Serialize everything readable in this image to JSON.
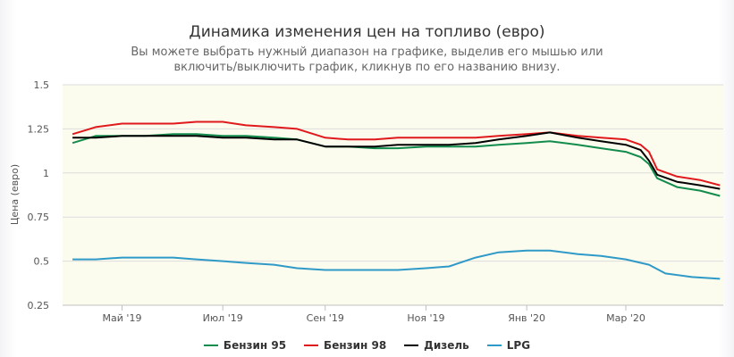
{
  "chart_data": {
    "type": "line",
    "title": "Динамика изменения цен на топливо (евро)",
    "subtitle_lines": [
      "Вы можете выбрать нужный диапазон на графике, выделив его мышью или",
      "включить/выключить график, кликнув по его названию внизу."
    ],
    "ylabel": "Цена (евро)",
    "xlabel": "",
    "ylim": [
      0.25,
      1.5
    ],
    "yticks": [
      0.25,
      0.5,
      0.75,
      1,
      1.25,
      1.5
    ],
    "xlim": [
      "2019-03-26",
      "2020-04-29"
    ],
    "xticks": [
      {
        "date": "2019-05-01",
        "label": "Май '19"
      },
      {
        "date": "2019-07-01",
        "label": "Июл '19"
      },
      {
        "date": "2019-09-01",
        "label": "Сен '19"
      },
      {
        "date": "2019-11-01",
        "label": "Ноя '19"
      },
      {
        "date": "2020-01-01",
        "label": "Янв '20"
      },
      {
        "date": "2020-03-01",
        "label": "Мар '20"
      }
    ],
    "grid": true,
    "legend_position": "bottom",
    "series": [
      {
        "name": "Бензин 95",
        "color": "#128c4c",
        "points": [
          [
            "2019-04-01",
            1.17
          ],
          [
            "2019-04-08",
            1.19
          ],
          [
            "2019-04-15",
            1.21
          ],
          [
            "2019-05-01",
            1.21
          ],
          [
            "2019-05-15",
            1.21
          ],
          [
            "2019-06-01",
            1.22
          ],
          [
            "2019-06-15",
            1.22
          ],
          [
            "2019-07-01",
            1.21
          ],
          [
            "2019-07-15",
            1.21
          ],
          [
            "2019-08-01",
            1.2
          ],
          [
            "2019-08-15",
            1.19
          ],
          [
            "2019-09-01",
            1.15
          ],
          [
            "2019-09-15",
            1.15
          ],
          [
            "2019-10-01",
            1.14
          ],
          [
            "2019-10-15",
            1.14
          ],
          [
            "2019-11-01",
            1.15
          ],
          [
            "2019-11-15",
            1.15
          ],
          [
            "2019-12-01",
            1.15
          ],
          [
            "2019-12-15",
            1.16
          ],
          [
            "2020-01-01",
            1.17
          ],
          [
            "2020-01-15",
            1.18
          ],
          [
            "2020-02-01",
            1.16
          ],
          [
            "2020-02-15",
            1.14
          ],
          [
            "2020-03-01",
            1.12
          ],
          [
            "2020-03-10",
            1.09
          ],
          [
            "2020-03-15",
            1.05
          ],
          [
            "2020-03-20",
            0.97
          ],
          [
            "2020-04-01",
            0.92
          ],
          [
            "2020-04-15",
            0.9
          ],
          [
            "2020-04-27",
            0.87
          ]
        ]
      },
      {
        "name": "Бензин 98",
        "color": "#e0191c",
        "points": [
          [
            "2019-04-01",
            1.22
          ],
          [
            "2019-04-08",
            1.24
          ],
          [
            "2019-04-15",
            1.26
          ],
          [
            "2019-05-01",
            1.28
          ],
          [
            "2019-05-15",
            1.28
          ],
          [
            "2019-06-01",
            1.28
          ],
          [
            "2019-06-15",
            1.29
          ],
          [
            "2019-07-01",
            1.29
          ],
          [
            "2019-07-15",
            1.27
          ],
          [
            "2019-08-01",
            1.26
          ],
          [
            "2019-08-15",
            1.25
          ],
          [
            "2019-09-01",
            1.2
          ],
          [
            "2019-09-15",
            1.19
          ],
          [
            "2019-10-01",
            1.19
          ],
          [
            "2019-10-15",
            1.2
          ],
          [
            "2019-11-01",
            1.2
          ],
          [
            "2019-11-15",
            1.2
          ],
          [
            "2019-12-01",
            1.2
          ],
          [
            "2019-12-15",
            1.21
          ],
          [
            "2020-01-01",
            1.22
          ],
          [
            "2020-01-15",
            1.23
          ],
          [
            "2020-02-01",
            1.21
          ],
          [
            "2020-02-15",
            1.2
          ],
          [
            "2020-03-01",
            1.19
          ],
          [
            "2020-03-10",
            1.16
          ],
          [
            "2020-03-15",
            1.12
          ],
          [
            "2020-03-20",
            1.02
          ],
          [
            "2020-04-01",
            0.98
          ],
          [
            "2020-04-15",
            0.96
          ],
          [
            "2020-04-27",
            0.93
          ]
        ]
      },
      {
        "name": "Дизель",
        "color": "#000000",
        "points": [
          [
            "2019-04-01",
            1.2
          ],
          [
            "2019-04-08",
            1.2
          ],
          [
            "2019-04-15",
            1.2
          ],
          [
            "2019-05-01",
            1.21
          ],
          [
            "2019-05-15",
            1.21
          ],
          [
            "2019-06-01",
            1.21
          ],
          [
            "2019-06-15",
            1.21
          ],
          [
            "2019-07-01",
            1.2
          ],
          [
            "2019-07-15",
            1.2
          ],
          [
            "2019-08-01",
            1.19
          ],
          [
            "2019-08-15",
            1.19
          ],
          [
            "2019-09-01",
            1.15
          ],
          [
            "2019-09-15",
            1.15
          ],
          [
            "2019-10-01",
            1.15
          ],
          [
            "2019-10-15",
            1.16
          ],
          [
            "2019-11-01",
            1.16
          ],
          [
            "2019-11-15",
            1.16
          ],
          [
            "2019-12-01",
            1.17
          ],
          [
            "2019-12-15",
            1.19
          ],
          [
            "2020-01-01",
            1.21
          ],
          [
            "2020-01-15",
            1.23
          ],
          [
            "2020-02-01",
            1.2
          ],
          [
            "2020-02-15",
            1.18
          ],
          [
            "2020-03-01",
            1.16
          ],
          [
            "2020-03-10",
            1.13
          ],
          [
            "2020-03-15",
            1.07
          ],
          [
            "2020-03-20",
            0.99
          ],
          [
            "2020-04-01",
            0.95
          ],
          [
            "2020-04-15",
            0.93
          ],
          [
            "2020-04-27",
            0.91
          ]
        ]
      },
      {
        "name": "LPG",
        "color": "#2f9ac7",
        "points": [
          [
            "2019-04-01",
            0.51
          ],
          [
            "2019-04-15",
            0.51
          ],
          [
            "2019-05-01",
            0.52
          ],
          [
            "2019-05-15",
            0.52
          ],
          [
            "2019-06-01",
            0.52
          ],
          [
            "2019-06-15",
            0.51
          ],
          [
            "2019-07-01",
            0.5
          ],
          [
            "2019-07-15",
            0.49
          ],
          [
            "2019-08-01",
            0.48
          ],
          [
            "2019-08-15",
            0.46
          ],
          [
            "2019-09-01",
            0.45
          ],
          [
            "2019-09-15",
            0.45
          ],
          [
            "2019-10-01",
            0.45
          ],
          [
            "2019-10-15",
            0.45
          ],
          [
            "2019-11-01",
            0.46
          ],
          [
            "2019-11-15",
            0.47
          ],
          [
            "2019-12-01",
            0.52
          ],
          [
            "2019-12-15",
            0.55
          ],
          [
            "2020-01-01",
            0.56
          ],
          [
            "2020-01-15",
            0.56
          ],
          [
            "2020-02-01",
            0.54
          ],
          [
            "2020-02-15",
            0.53
          ],
          [
            "2020-03-01",
            0.51
          ],
          [
            "2020-03-15",
            0.48
          ],
          [
            "2020-03-25",
            0.43
          ],
          [
            "2020-04-10",
            0.41
          ],
          [
            "2020-04-27",
            0.4
          ]
        ]
      }
    ]
  }
}
